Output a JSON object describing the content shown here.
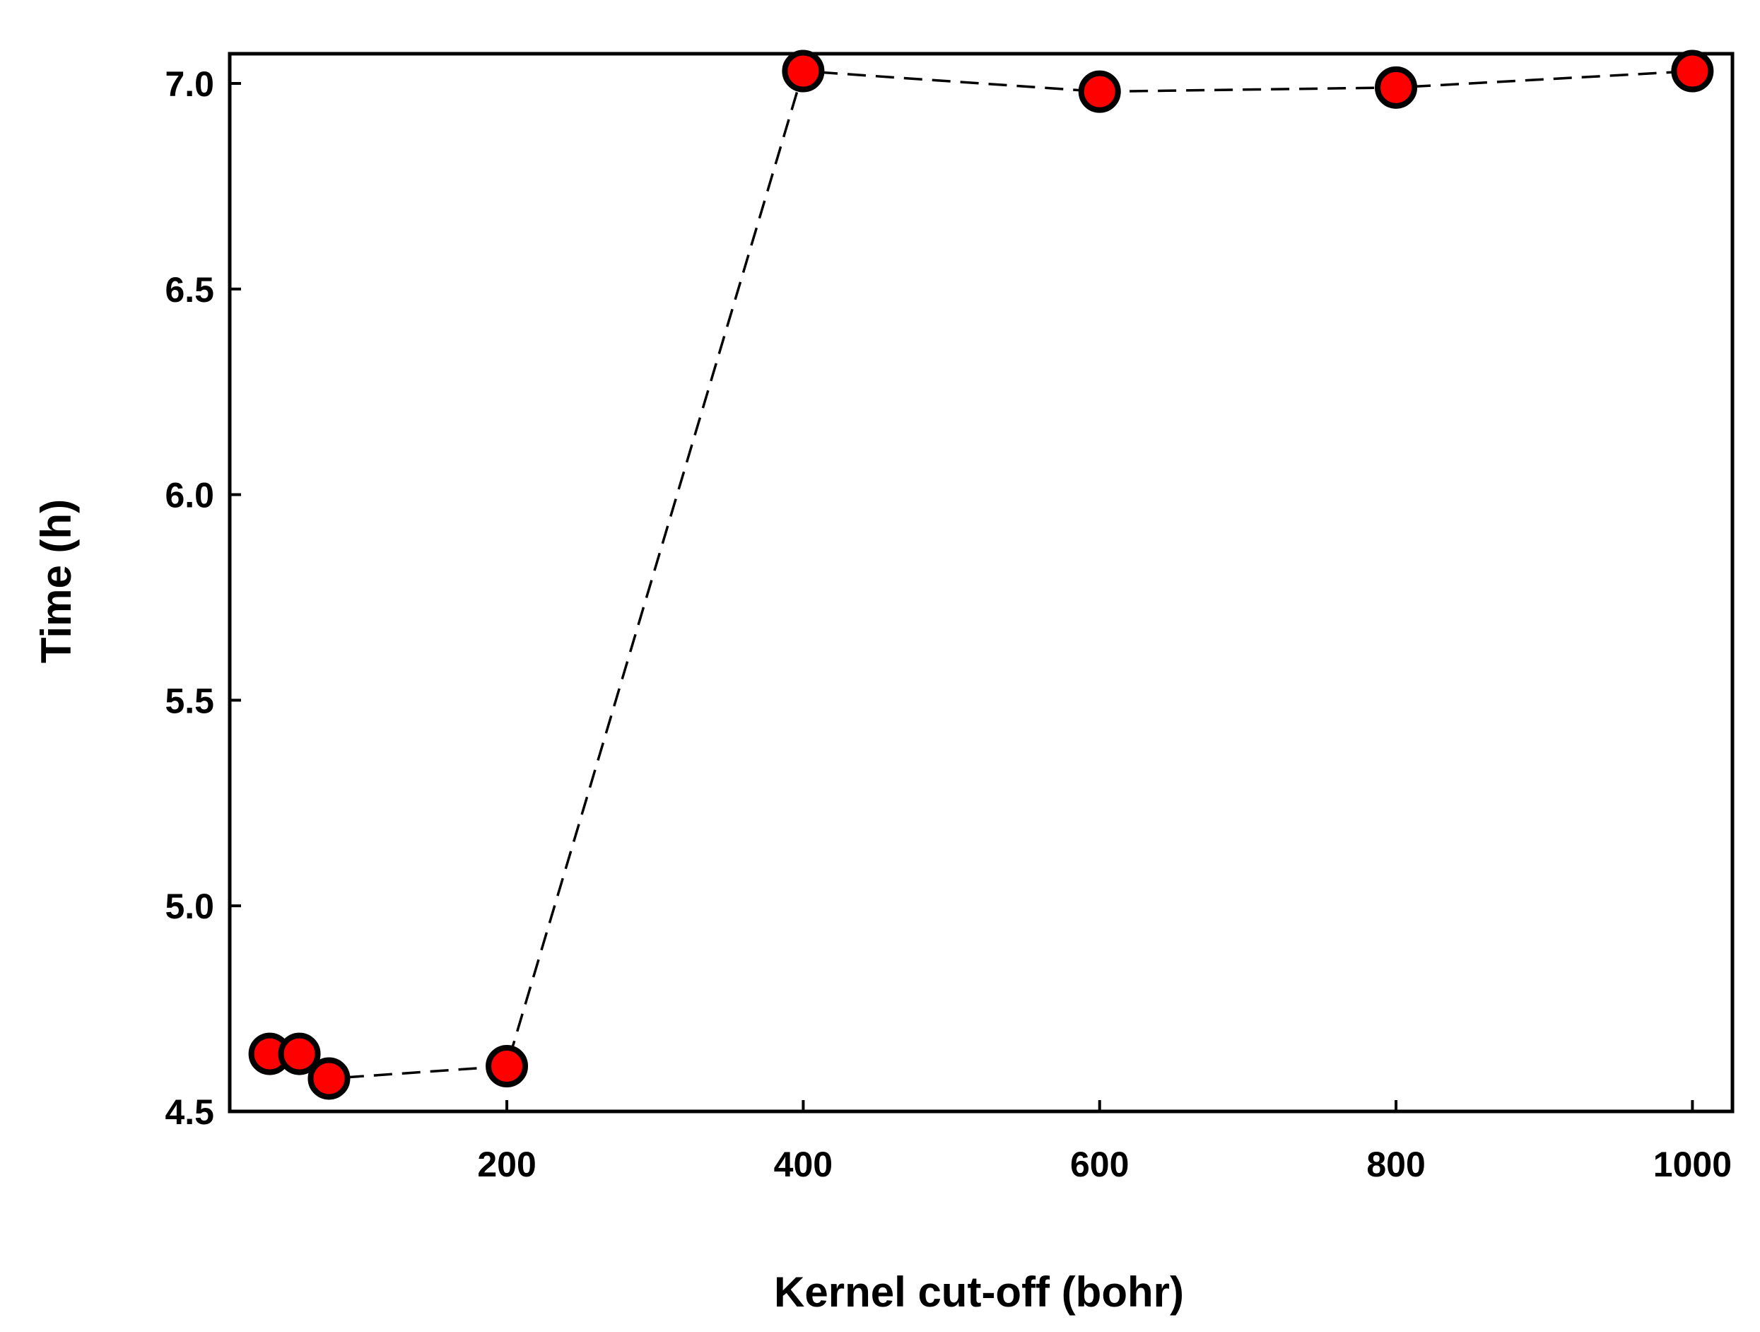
{
  "chart_data": {
    "type": "scatter",
    "xlabel": "Kernel cut-off (bohr)",
    "ylabel": "Time (h)",
    "xlim": [
      13,
      1027
    ],
    "ylim": [
      4.5,
      7.1
    ],
    "xticks": [
      200,
      400,
      600,
      800,
      1000
    ],
    "xtick_labels": [
      "200",
      "400",
      "600",
      "800",
      "1000"
    ],
    "yticks": [
      4.5,
      5.0,
      5.5,
      6.0,
      6.5,
      7.0
    ],
    "ytick_labels": [
      "4.5",
      "5.0",
      "5.5",
      "6.0",
      "6.5",
      "7.0"
    ],
    "grid": false,
    "marker_color": "#ff0000",
    "line_style": "dashed",
    "series": [
      {
        "x": [
          40,
          60,
          80,
          200,
          400,
          600,
          800,
          1000
        ],
        "y": [
          4.64,
          4.64,
          4.58,
          4.61,
          7.03,
          6.98,
          6.99,
          7.03
        ]
      }
    ]
  }
}
